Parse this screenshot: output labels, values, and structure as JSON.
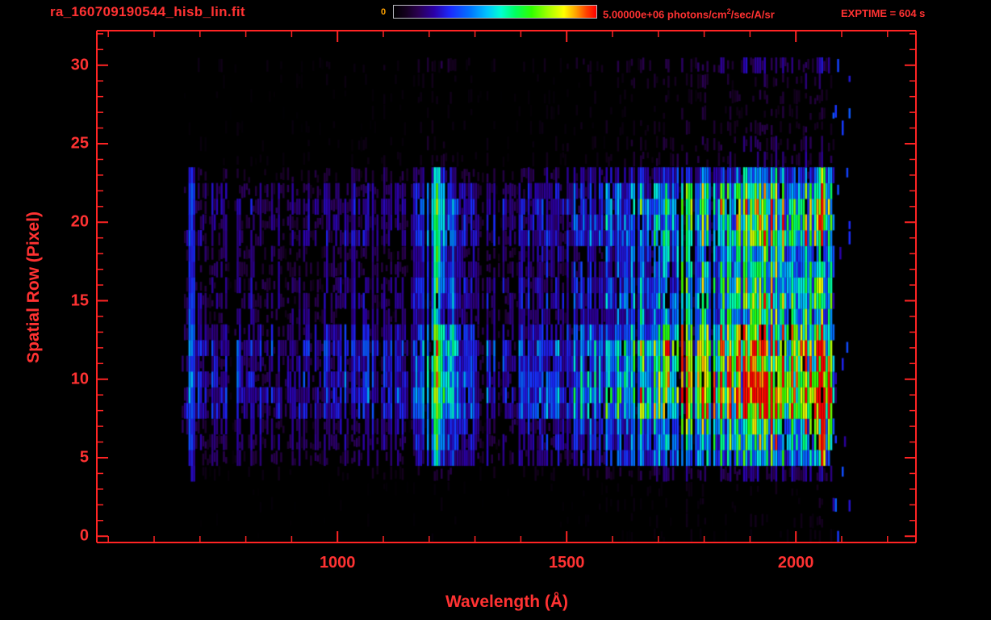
{
  "header": {
    "filename": "ra_160709190544_hisb_lin.fit",
    "colorbar_min_label": "0",
    "colorbar_max_label": "5.00000e+06 photons/cm2/sec/A/sr",
    "colorbar_max_parts": {
      "prefix": "5.00000e+06 photons/cm",
      "sup": "2",
      "suffix": "/sec/A/sr"
    },
    "exptime_label": "EXPTIME = 604 s"
  },
  "colors": {
    "background": "#000000",
    "axis": "#ff2424",
    "text": "#ff3232",
    "zero_label": "#ffa200",
    "colorbar_border": "#b9b9c0"
  },
  "chart_data": {
    "type": "heatmap",
    "title": "ra_160709190544_hisb_lin.fit",
    "xlabel": "Wavelength (Å)",
    "ylabel": "Spatial Row (Pixel)",
    "x_range": [
      475,
      2262
    ],
    "y_range": [
      -0.4,
      32.2
    ],
    "x_ticks_major": [
      1000,
      1500,
      2000
    ],
    "x_minor_step": 100,
    "y_ticks_major": [
      0,
      5,
      10,
      15,
      20,
      25,
      30
    ],
    "y_minor_step": 1,
    "colorbar": {
      "min": 0,
      "max": 5000000,
      "units": "photons/cm^2/sec/A/sr"
    },
    "exptime_s": 604,
    "data_extent": {
      "wavelength": [
        660,
        2085
      ],
      "rows": [
        0,
        30
      ]
    },
    "wavelength_bins": [
      660,
      700,
      740,
      800,
      860,
      920,
      980,
      1040,
      1100,
      1160,
      1216,
      1280,
      1340,
      1400,
      1460,
      1520,
      1580,
      1640,
      1700,
      1760,
      1820,
      1880,
      1940,
      2000,
      2060,
      2085
    ],
    "spectral_profile": [
      0.14,
      0.2,
      0.17,
      0.2,
      0.18,
      0.17,
      0.19,
      0.22,
      0.2,
      0.19,
      0.5,
      0.24,
      0.21,
      0.23,
      0.26,
      0.3,
      0.37,
      0.46,
      0.56,
      0.63,
      0.72,
      0.8,
      0.86,
      0.88,
      0.9,
      0.6
    ],
    "row_profile": [
      0.03,
      0.04,
      0.04,
      0.05,
      0.16,
      0.5,
      0.62,
      0.72,
      0.85,
      0.95,
      1.0,
      0.98,
      0.88,
      0.68,
      0.64,
      0.7,
      0.66,
      0.6,
      0.56,
      0.7,
      0.76,
      0.72,
      0.64,
      0.38,
      0.12,
      0.1,
      0.08,
      0.08,
      0.09,
      0.1,
      0.13
    ],
    "emission_lines": [
      {
        "wavelength": 680,
        "width": 12,
        "strength": 0.17,
        "rows": [
          4,
          23
        ]
      },
      {
        "wavelength": 1030,
        "width": 10,
        "strength": 0.07,
        "rows": [
          9,
          23
        ]
      },
      {
        "wavelength": 1216,
        "width": 16,
        "strength": 0.3,
        "rows": [
          5,
          23
        ]
      },
      {
        "wavelength": 1660,
        "width": 10,
        "strength": 0.08,
        "rows": [
          5,
          23
        ]
      },
      {
        "wavelength": 2058,
        "width": 10,
        "strength": 0.4,
        "rows": [
          5,
          12
        ]
      },
      {
        "wavelength": 2058,
        "width": 10,
        "strength": 0.3,
        "rows": [
          20,
          23
        ]
      }
    ],
    "colormap_stops": [
      [
        0.0,
        "#000000"
      ],
      [
        0.06,
        "#14001e"
      ],
      [
        0.12,
        "#2a0050"
      ],
      [
        0.2,
        "#2b00a8"
      ],
      [
        0.28,
        "#1b2bff"
      ],
      [
        0.38,
        "#0077ff"
      ],
      [
        0.46,
        "#00c3ff"
      ],
      [
        0.53,
        "#00ffd0"
      ],
      [
        0.6,
        "#00ff60"
      ],
      [
        0.68,
        "#30ff00"
      ],
      [
        0.76,
        "#a0ff00"
      ],
      [
        0.84,
        "#ffff00"
      ],
      [
        0.9,
        "#ffa000"
      ],
      [
        0.95,
        "#ff4400"
      ],
      [
        1.0,
        "#ff0000"
      ]
    ]
  }
}
